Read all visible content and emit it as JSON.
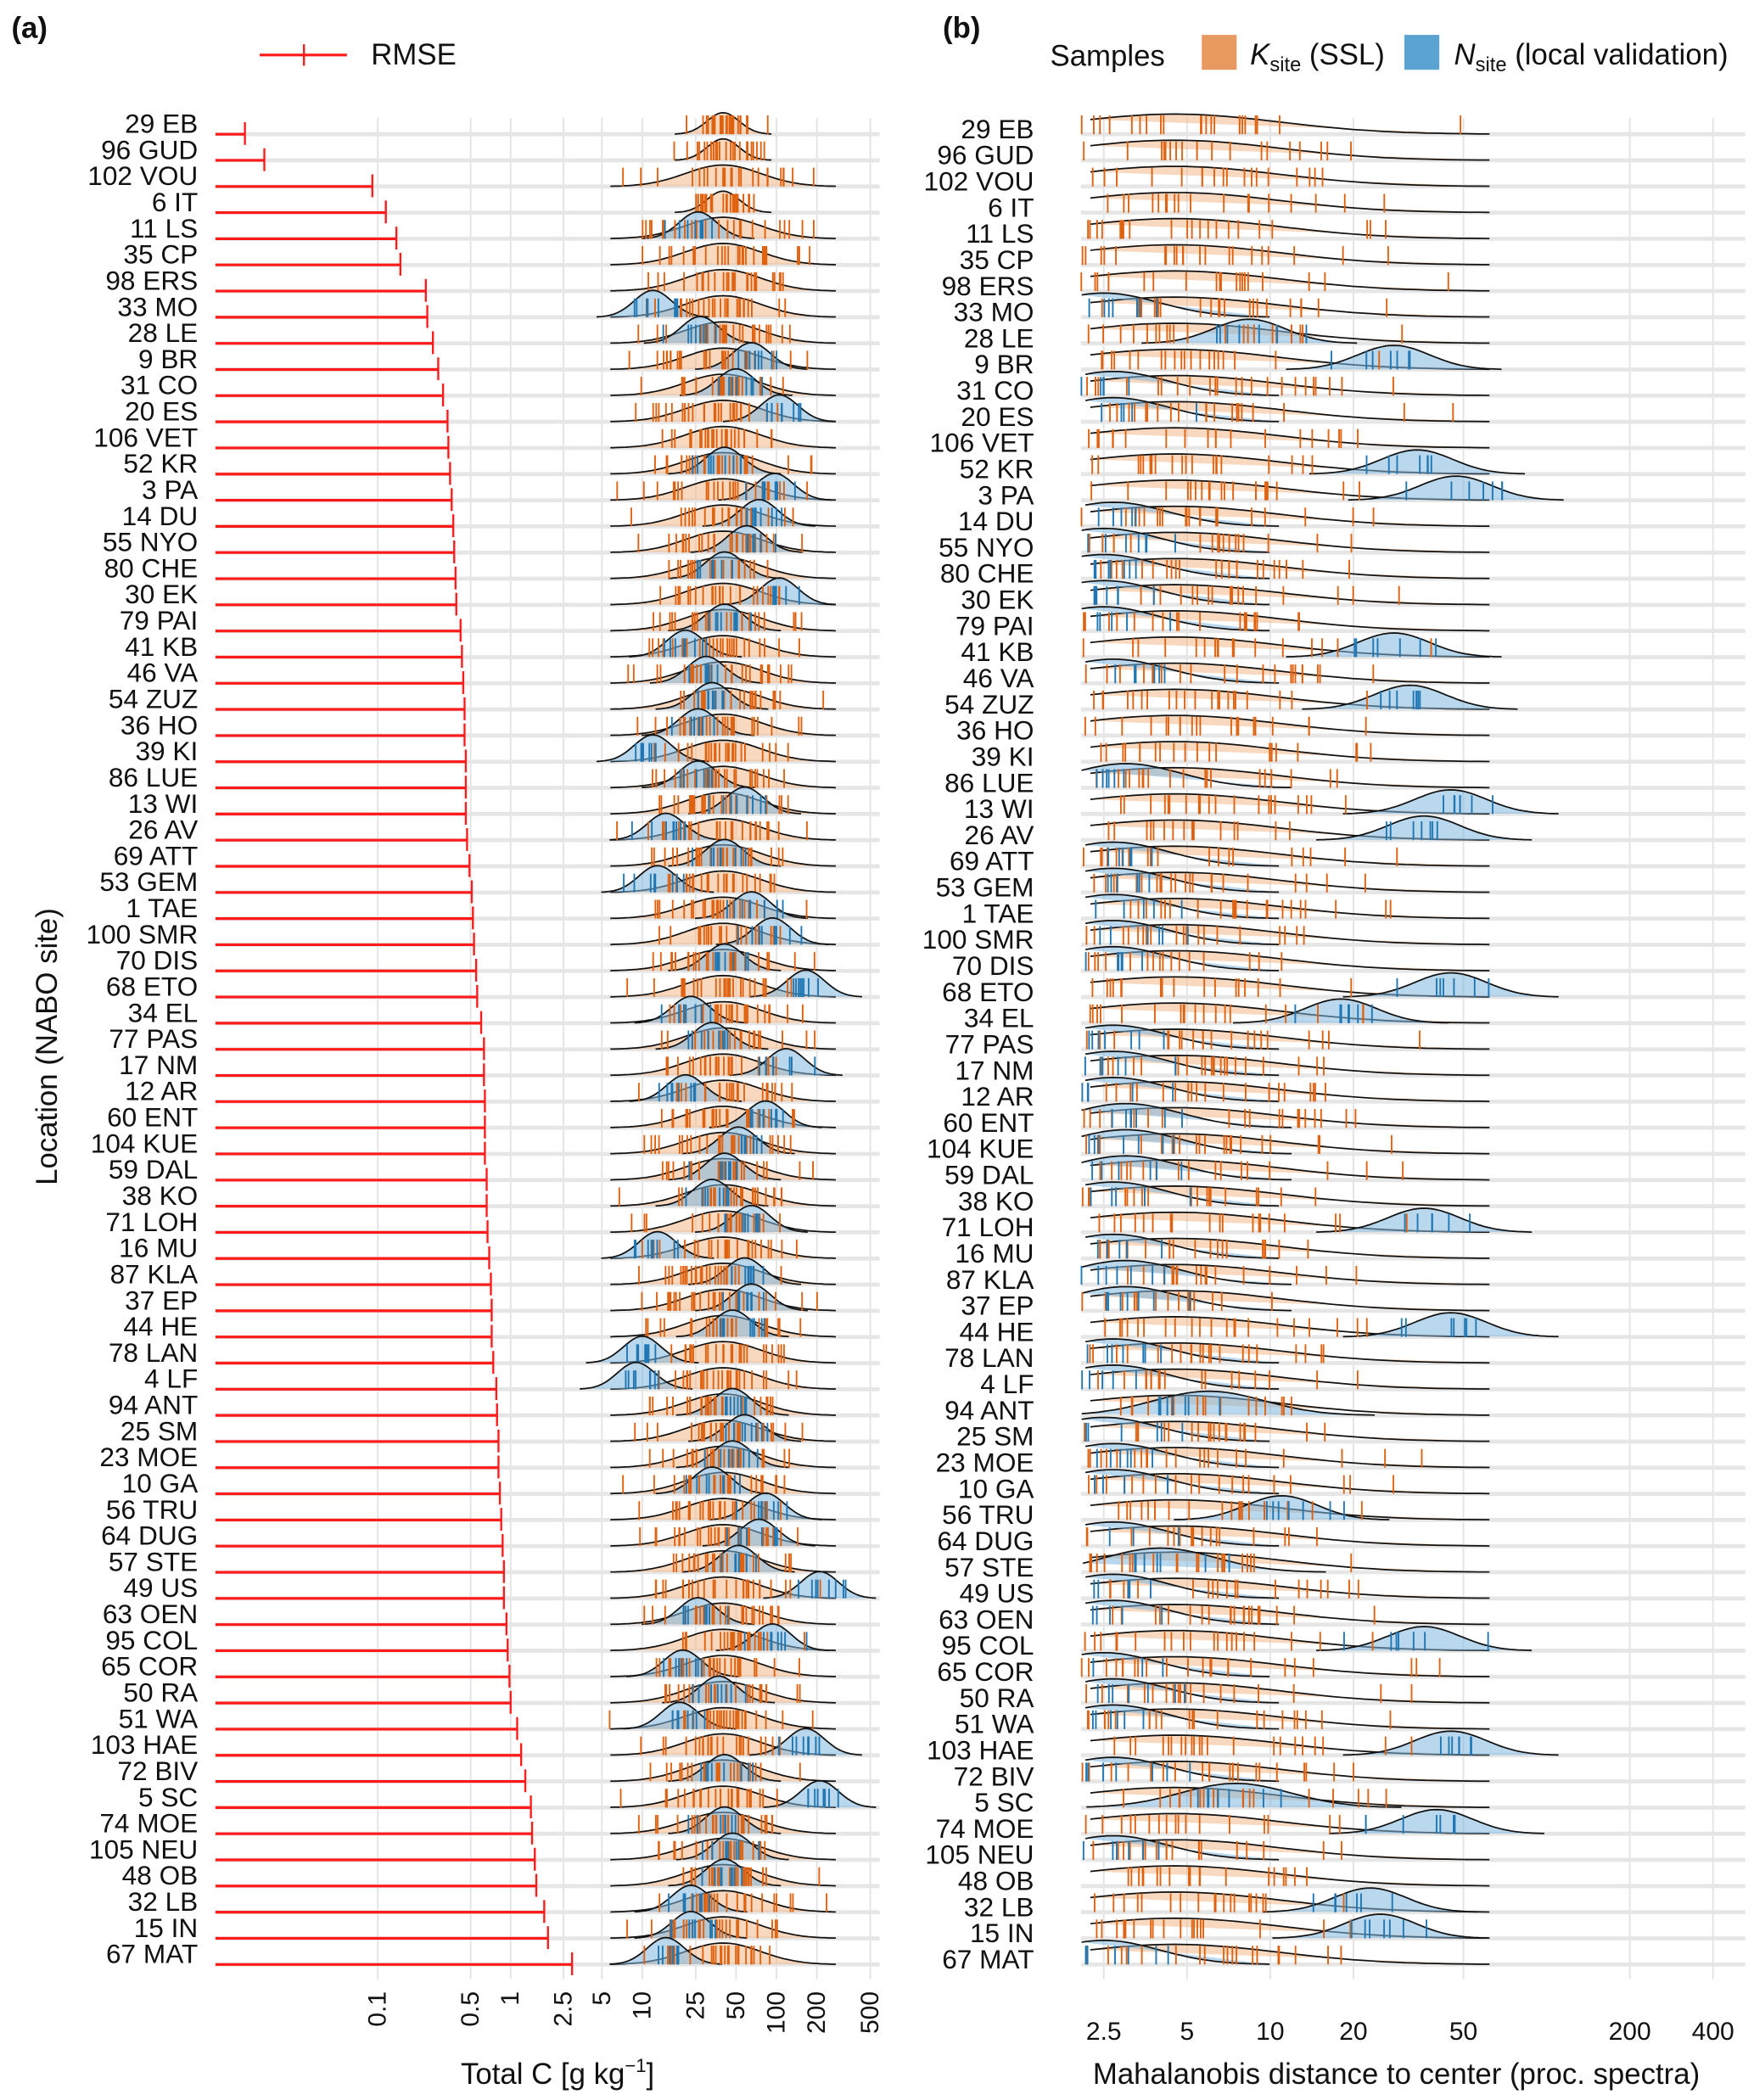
{
  "panel_labels": {
    "a": "(a)",
    "b": "(b)"
  },
  "legend_a": {
    "label": "RMSE",
    "color": "#ff1a1a"
  },
  "legend_b": {
    "title": "Samples",
    "ssl": {
      "main": "K",
      "sub": "site",
      "rest": " (SSL)",
      "color": "#e8995f"
    },
    "val": {
      "main": "N",
      "sub": "site",
      "rest": " (local validation)",
      "color": "#5aa3d3"
    }
  },
  "chart_data": [
    {
      "type": "errorbar+density",
      "panel": "a",
      "xlabel": "Total C [g kg",
      "xlabel_sup": "−1",
      "xlabel_end": "]",
      "ylabel": "Location (NABO site)",
      "rmse_ticks": [
        "0.1",
        "0.5",
        "1",
        "2.5"
      ],
      "rmse_tick_values": [
        0.1,
        0.5,
        1,
        2.5
      ],
      "totalc_ticks": [
        "5",
        "10",
        "25",
        "50",
        "100",
        "200",
        "500"
      ],
      "totalc_tick_values": [
        5,
        10,
        25,
        50,
        100,
        200,
        500
      ],
      "scale": "log10",
      "ssl_default_peak": 40
    },
    {
      "type": "density",
      "panel": "b",
      "xlabel": "Mahalanobis distance to center (proc. spectra)",
      "ticks": [
        "2.5",
        "5",
        "10",
        "20",
        "50",
        "200",
        "400"
      ],
      "tick_values": [
        2.5,
        5,
        10,
        20,
        50,
        200,
        400
      ],
      "scale": "log",
      "ssl_default_peak": 4.5
    }
  ],
  "rows": [
    [
      "29 EB",
      0.01,
      null,
      null
    ],
    [
      "96 GUD",
      0.014,
      null,
      null
    ],
    [
      "102 VOU",
      0.091,
      null,
      null
    ],
    [
      "6 IT",
      0.115,
      null,
      null
    ],
    [
      "11 LS",
      0.138,
      26,
      null
    ],
    [
      "35 CP",
      0.148,
      null,
      null
    ],
    [
      "98 ERS",
      0.23,
      null,
      null
    ],
    [
      "33 MO",
      0.236,
      12,
      2.5
    ],
    [
      "28 LE",
      0.26,
      27,
      8.4
    ],
    [
      "9 BR",
      0.285,
      65,
      28
    ],
    [
      "31 CO",
      0.31,
      50,
      2.7
    ],
    [
      "20 ES",
      0.335,
      105,
      2.7
    ],
    [
      "106 VET",
      0.34,
      null,
      null
    ],
    [
      "52 KR",
      0.35,
      41,
      34
    ],
    [
      "3 PA",
      0.36,
      97,
      47
    ],
    [
      "14 DU",
      0.37,
      74,
      2.7
    ],
    [
      "55 NYO",
      0.376,
      60,
      2.5
    ],
    [
      "80 CHE",
      0.385,
      41,
      2.5
    ],
    [
      "30 EK",
      0.39,
      105,
      2.5
    ],
    [
      "79 PAI",
      0.42,
      41,
      2.5
    ],
    [
      "41 KB",
      0.43,
      21,
      28
    ],
    [
      "46 VA",
      0.44,
      30,
      2.7
    ],
    [
      "54 ZUZ",
      0.45,
      33,
      32
    ],
    [
      "36 HO",
      0.45,
      26,
      null
    ],
    [
      "39 KI",
      0.46,
      12,
      null
    ],
    [
      "86 LUE",
      0.46,
      26,
      3
    ],
    [
      "13 WI",
      0.46,
      58,
      45
    ],
    [
      "26 AV",
      0.47,
      15,
      36
    ],
    [
      "69 ATT",
      0.49,
      41,
      2.7
    ],
    [
      "53 GEM",
      0.51,
      13,
      2.7
    ],
    [
      "1 TAE",
      0.52,
      65,
      2.7
    ],
    [
      "100 SMR",
      0.53,
      93,
      2.7
    ],
    [
      "70 DIS",
      0.55,
      41,
      2.7
    ],
    [
      "68 ETO",
      0.56,
      165,
      45
    ],
    [
      "34 EL",
      0.6,
      23,
      18
    ],
    [
      "77 PAS",
      0.63,
      33,
      2.7
    ],
    [
      "17 NM",
      0.63,
      118,
      2.7
    ],
    [
      "12 AR",
      0.64,
      21,
      2.7
    ],
    [
      "60 ENT",
      0.64,
      83,
      3
    ],
    [
      "104 KUE",
      0.64,
      52,
      3
    ],
    [
      "59 DAL",
      0.66,
      41,
      3
    ],
    [
      "38 KO",
      0.66,
      33,
      2.7
    ],
    [
      "71 LOH",
      0.67,
      65,
      36
    ],
    [
      "16 MU",
      0.69,
      13,
      2.7
    ],
    [
      "87 KLA",
      0.71,
      58,
      3
    ],
    [
      "37 EP",
      0.72,
      65,
      3
    ],
    [
      "44 HE",
      0.72,
      47,
      45
    ],
    [
      "78 LAN",
      0.74,
      10,
      2.7
    ],
    [
      "4 LF",
      0.78,
      9,
      2.7
    ],
    [
      "94 ANT",
      0.79,
      47,
      6
    ],
    [
      "25 SM",
      0.81,
      58,
      2.5
    ],
    [
      "23 MOE",
      0.81,
      47,
      2.7
    ],
    [
      "10 GA",
      0.83,
      33,
      2.7
    ],
    [
      "56 TRU",
      0.85,
      83,
      11
    ],
    [
      "64 DUG",
      0.87,
      74,
      2.7
    ],
    [
      "57 STE",
      0.89,
      52,
      4
    ],
    [
      "49 US",
      0.89,
      210,
      2.7
    ],
    [
      "63 OEN",
      0.93,
      26,
      2.7
    ],
    [
      "95 COL",
      0.95,
      93,
      36
    ],
    [
      "65 COR",
      0.98,
      20,
      2.5
    ],
    [
      "50 RA",
      1.0,
      37,
      2.7
    ],
    [
      "51 WA",
      1.12,
      19,
      2.7
    ],
    [
      "103 HAE",
      1.2,
      165,
      45
    ],
    [
      "72 BIV",
      1.29,
      41,
      2.7
    ],
    [
      "5 SC",
      1.42,
      210,
      7.5
    ],
    [
      "74 MOE",
      1.45,
      41,
      40
    ],
    [
      "105 NEU",
      1.52,
      47,
      2.7
    ],
    [
      "48 OB",
      1.56,
      41,
      null
    ],
    [
      "32 LB",
      1.79,
      23,
      23
    ],
    [
      "15 IN",
      1.91,
      23,
      25
    ],
    [
      "67 MAT",
      2.9,
      15,
      2.5
    ]
  ]
}
